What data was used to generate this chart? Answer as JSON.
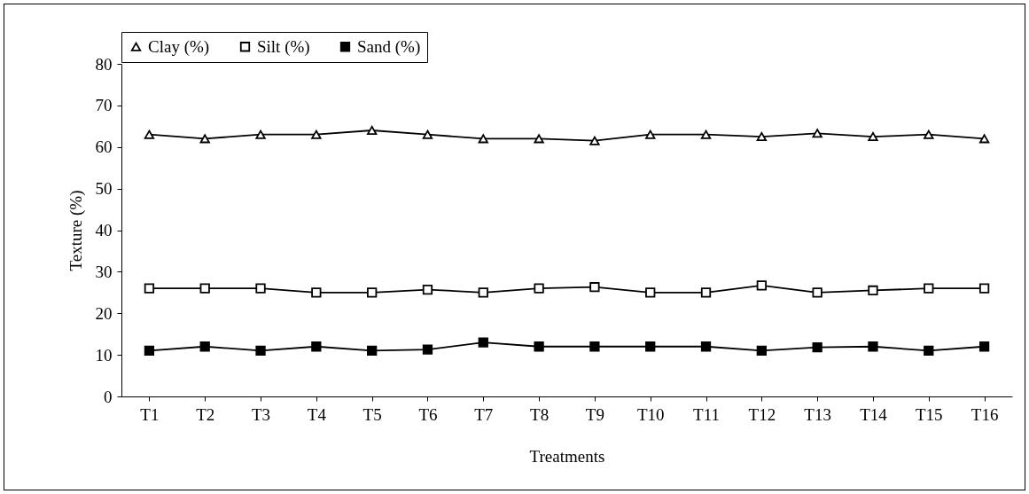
{
  "chart_data": {
    "type": "line",
    "xlabel": "Treatments",
    "ylabel": "Texture (%)",
    "categories": [
      "T1",
      "T2",
      "T3",
      "T4",
      "T5",
      "T6",
      "T7",
      "T8",
      "T9",
      "T10",
      "T11",
      "T12",
      "T13",
      "T14",
      "T15",
      "T16"
    ],
    "series": [
      {
        "name": "Clay (%)",
        "color": "#000000",
        "marker": "triangle",
        "colors": [
          "#ffffff",
          "#ffffff",
          "#ffffff",
          "#ffffff",
          "#ffffff",
          "#ffffff",
          "#ffffff",
          "#ffffff",
          "#ffffff",
          "#ffffff",
          "#ffffff",
          "#ffffff",
          "#ffffff",
          "#ffffff",
          "#ffffff",
          "#ffffff"
        ],
        "values": [
          63,
          62,
          63,
          63,
          64,
          63,
          62,
          62,
          61.5,
          63,
          63,
          62.5,
          63.3,
          62.5,
          63,
          62
        ]
      },
      {
        "name": "Silt (%)",
        "color": "#000000",
        "marker": "square",
        "colors": [
          "#ffffff",
          "#ffffff",
          "#ffffff",
          "#ffffff",
          "#ffffff",
          "#ffffff",
          "#ffffff",
          "#ffffff",
          "#ffffff",
          "#ffffff",
          "#ffffff",
          "#ffffff",
          "#ffffff",
          "#ffffff",
          "#ffffff",
          "#ffffff"
        ],
        "values": [
          26,
          26,
          26,
          25,
          25,
          25.7,
          25,
          26,
          26.3,
          25,
          25,
          26.7,
          25,
          25.5,
          26,
          26
        ]
      },
      {
        "name": "Sand (%)",
        "color": "#000000",
        "marker": "square",
        "values": [
          11,
          12,
          11,
          12,
          11,
          11.3,
          13,
          12,
          12,
          12,
          12,
          11,
          11.8,
          12,
          11,
          12
        ]
      }
    ],
    "ylim": [
      0,
      80
    ],
    "yticks": [
      0,
      10,
      20,
      30,
      40,
      50,
      60,
      70,
      80
    ],
    "legend": "top",
    "line_style": "solid"
  }
}
